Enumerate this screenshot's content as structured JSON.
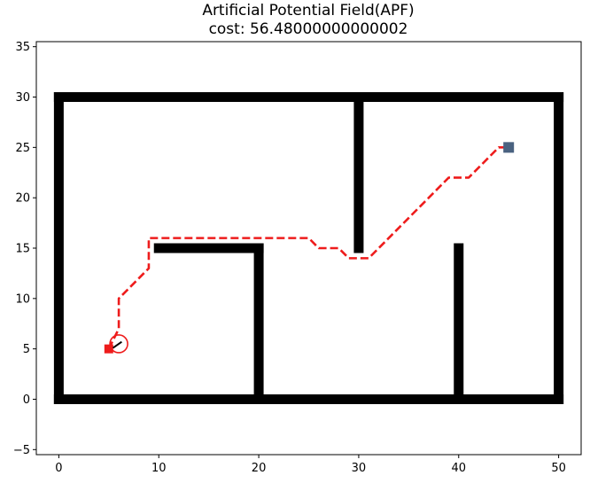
{
  "chart_data": {
    "type": "scatter",
    "title": "Artificial Potential Field(APF)",
    "subtitle": "cost: 56.48000000000002",
    "xlim": [
      -2.25,
      52.25
    ],
    "ylim": [
      -5.5,
      35.5
    ],
    "xticks": [
      "0",
      "10",
      "20",
      "30",
      "40",
      "50"
    ],
    "yticks": [
      "−5",
      "0",
      "5",
      "10",
      "15",
      "20",
      "25",
      "30",
      "35"
    ],
    "grid": false,
    "legend": "none",
    "obstacles": {
      "color": "#000000",
      "segments": [
        {
          "name": "bottom-wall",
          "x": [
            0,
            50
          ],
          "y": [
            0,
            0
          ]
        },
        {
          "name": "top-wall",
          "x": [
            0,
            50
          ],
          "y": [
            30,
            30
          ]
        },
        {
          "name": "left-wall",
          "x": [
            0,
            0
          ],
          "y": [
            0,
            30
          ]
        },
        {
          "name": "right-wall",
          "x": [
            50,
            50
          ],
          "y": [
            0,
            30
          ]
        },
        {
          "name": "inner-wall-top-center",
          "x": [
            30,
            30
          ],
          "y": [
            15,
            30
          ]
        },
        {
          "name": "inner-wall-horizontal",
          "x": [
            10,
            20
          ],
          "y": [
            15,
            15
          ]
        },
        {
          "name": "inner-wall-vertical-20",
          "x": [
            20,
            20
          ],
          "y": [
            0,
            15
          ]
        },
        {
          "name": "inner-wall-vertical-40",
          "x": [
            40,
            40
          ],
          "y": [
            0,
            15
          ]
        }
      ]
    },
    "path": {
      "color": "#ee1c1c",
      "style": "dashed",
      "x": [
        5,
        6,
        6,
        9,
        9,
        10,
        25,
        26,
        27,
        28,
        29,
        31,
        35,
        39,
        41,
        43,
        44,
        45
      ],
      "y": [
        5,
        7,
        10,
        13,
        16,
        16,
        16,
        15,
        15,
        15,
        14,
        14,
        18,
        22,
        22,
        24,
        25,
        25
      ]
    },
    "start": {
      "x": 5,
      "y": 5,
      "color": "#ee1c1c"
    },
    "goal": {
      "x": 45,
      "y": 25,
      "color": "#4a6280"
    },
    "robot": {
      "x": 6,
      "y": 5.5,
      "heading_deg": 35,
      "color": "#ee1c1c",
      "arrow_color": "#000000"
    }
  }
}
